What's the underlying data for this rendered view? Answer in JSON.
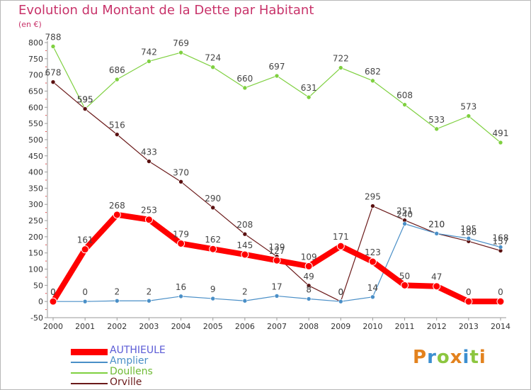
{
  "title": "Evolution du Montant de la Dette par Habitant",
  "unit": "(en €)",
  "logo": {
    "text": "Proxiti",
    "colors": [
      "#e3821e",
      "#3c8fd0",
      "#8cc63f",
      "#e3821e",
      "#3c8fd0",
      "#8cc63f",
      "#e3821e"
    ]
  },
  "chart_data": {
    "type": "line",
    "title": "Evolution du Montant de la Dette par Habitant",
    "ylabel": "(en €)",
    "xlabel": "",
    "x": [
      2000,
      2001,
      2002,
      2003,
      2004,
      2005,
      2006,
      2007,
      2008,
      2009,
      2010,
      2011,
      2012,
      2013,
      2014
    ],
    "ylim": [
      -50,
      800
    ],
    "yticks": [
      -50,
      0,
      50,
      100,
      150,
      200,
      250,
      300,
      350,
      400,
      450,
      500,
      550,
      600,
      650,
      700,
      750,
      800
    ],
    "grid": false,
    "legend_position": "bottom-left",
    "series": [
      {
        "name": "AUTHIEULE",
        "color": "#ff0000",
        "values": [
          0,
          161,
          268,
          253,
          179,
          162,
          145,
          127,
          109,
          171,
          123,
          50,
          47,
          0,
          0
        ]
      },
      {
        "name": "Amplier",
        "color": "#4a8fc7",
        "values": [
          0,
          0,
          2,
          2,
          16,
          9,
          2,
          17,
          8,
          0,
          14,
          240,
          210,
          195,
          168
        ]
      },
      {
        "name": "Doullens",
        "color": "#7fd040",
        "values": [
          788,
          595,
          686,
          742,
          769,
          724,
          660,
          697,
          631,
          722,
          682,
          608,
          533,
          573,
          491
        ]
      },
      {
        "name": "Orville",
        "color": "#6b1a1a",
        "values": [
          678,
          595,
          516,
          433,
          370,
          290,
          208,
          139,
          49,
          0,
          295,
          251,
          210,
          186,
          157
        ]
      }
    ]
  }
}
